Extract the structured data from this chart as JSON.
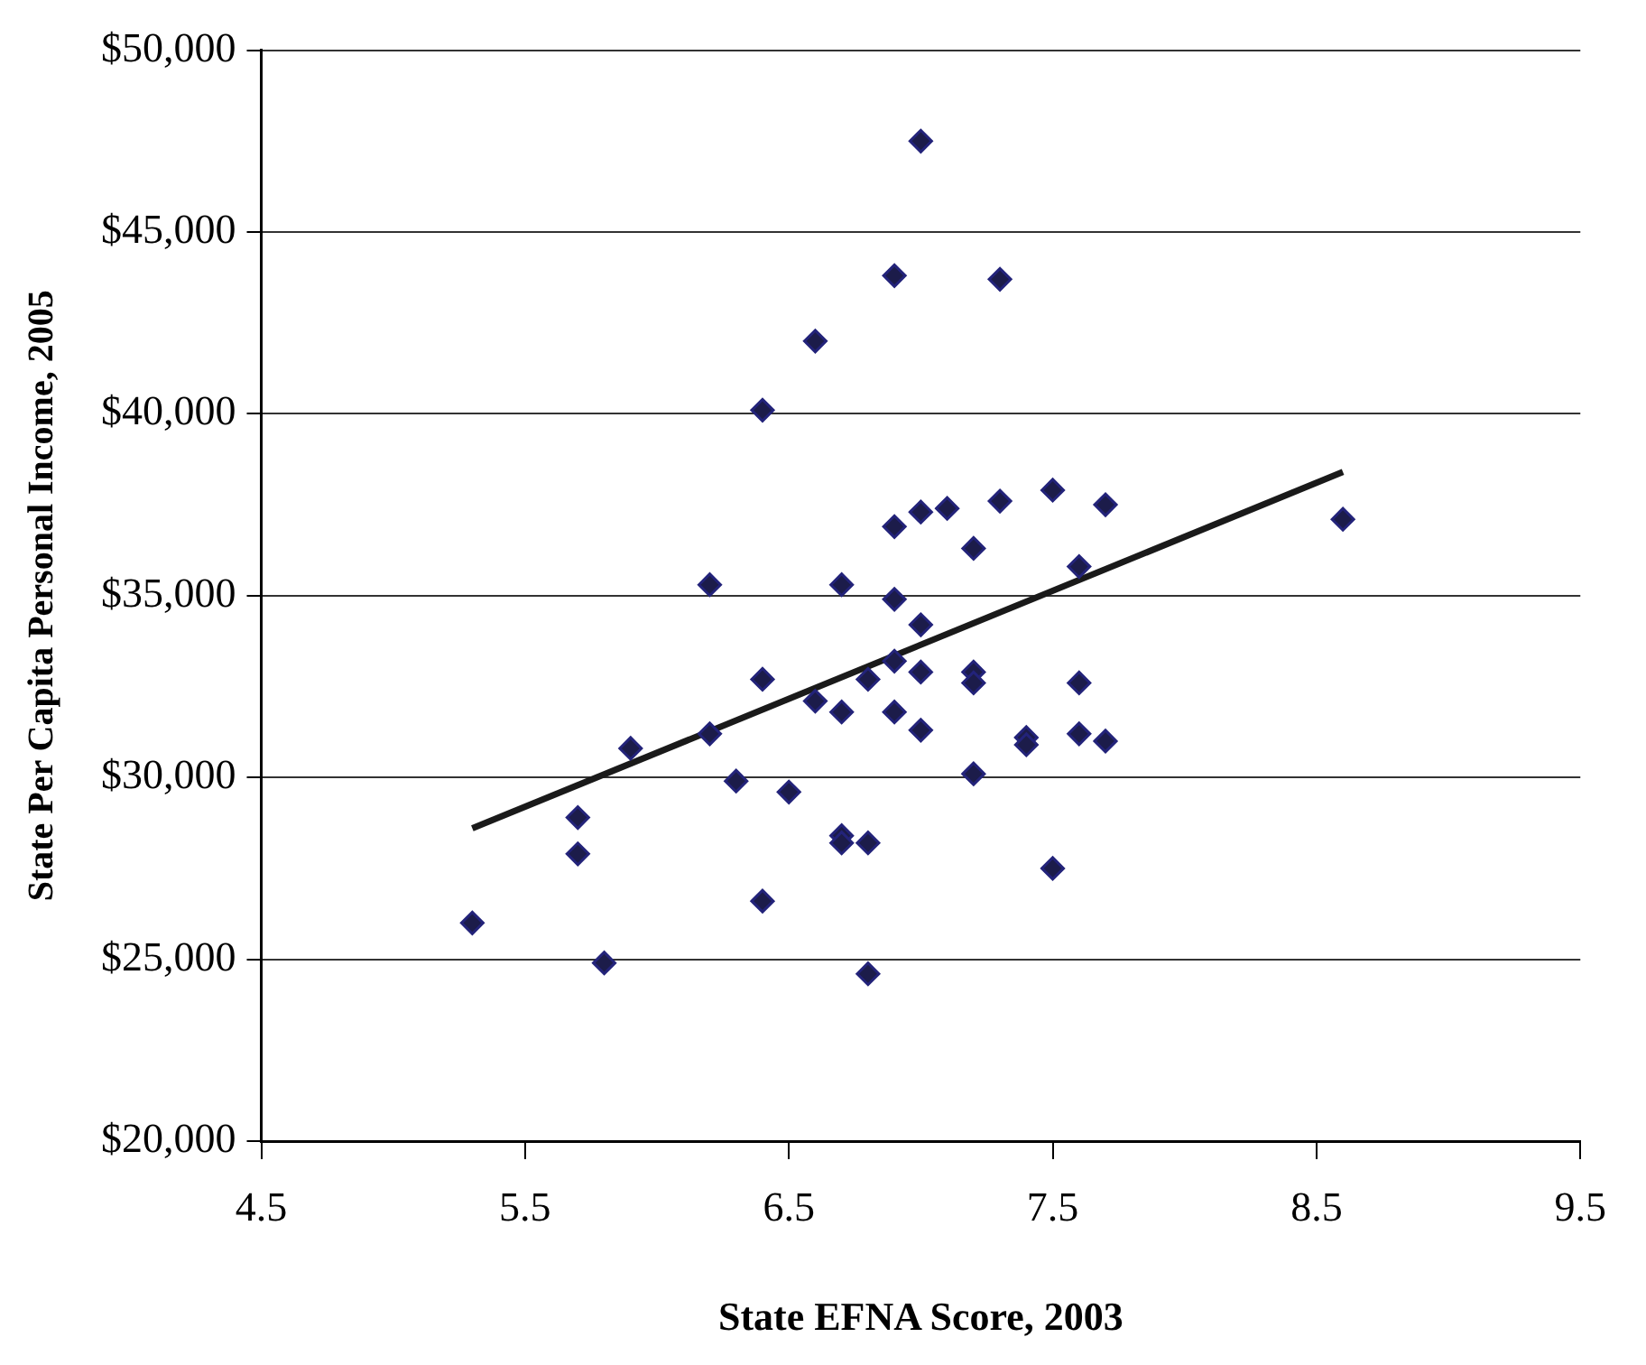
{
  "chart_data": {
    "type": "scatter",
    "xlabel": "State EFNA Score, 2003",
    "ylabel": "State Per Capita Personal Income, 2005",
    "xlim": [
      4.5,
      9.5
    ],
    "xticks": [
      4.5,
      5.5,
      6.5,
      7.5,
      8.5,
      9.5
    ],
    "ylim": [
      20000,
      50000
    ],
    "yticks": [
      {
        "value": 20000,
        "label": "$20,000"
      },
      {
        "value": 25000,
        "label": "$25,000"
      },
      {
        "value": 30000,
        "label": "$30,000"
      },
      {
        "value": 35000,
        "label": "$35,000"
      },
      {
        "value": 40000,
        "label": "$40,000"
      },
      {
        "value": 45000,
        "label": "$45,000"
      },
      {
        "value": 50000,
        "label": "$50,000"
      }
    ],
    "grid": "y",
    "legend": false,
    "marker": "diamond",
    "series": [
      {
        "type": "scatter",
        "color": "#1c1c4a",
        "x": [
          5.3,
          5.7,
          5.7,
          5.8,
          5.9,
          6.2,
          6.2,
          6.3,
          6.4,
          6.4,
          6.4,
          6.5,
          6.6,
          6.6,
          6.7,
          6.7,
          6.7,
          6.7,
          6.8,
          6.8,
          6.8,
          6.9,
          6.9,
          6.9,
          6.9,
          6.9,
          7.0,
          7.0,
          7.0,
          7.0,
          7.0,
          7.1,
          7.2,
          7.2,
          7.2,
          7.2,
          7.3,
          7.3,
          7.4,
          7.4,
          7.5,
          7.5,
          7.6,
          7.6,
          7.6,
          7.7,
          7.7,
          8.6
        ],
        "values": [
          26000,
          28900,
          27900,
          24900,
          30800,
          35300,
          31200,
          29900,
          40100,
          32700,
          26600,
          29600,
          42000,
          32100,
          35300,
          31800,
          28400,
          28200,
          32700,
          28200,
          24600,
          43800,
          36900,
          34900,
          33200,
          31800,
          47500,
          37300,
          34200,
          32900,
          31300,
          37400,
          36300,
          32900,
          32600,
          30100,
          43700,
          37600,
          31100,
          30900,
          37900,
          27500,
          35800,
          32600,
          31200,
          37500,
          31000,
          37100
        ]
      },
      {
        "type": "line",
        "color": "#1a1a1a",
        "marker": "none",
        "line_style": "solid",
        "x": [
          5.3,
          8.6
        ],
        "values": [
          28600,
          38400
        ]
      }
    ]
  }
}
